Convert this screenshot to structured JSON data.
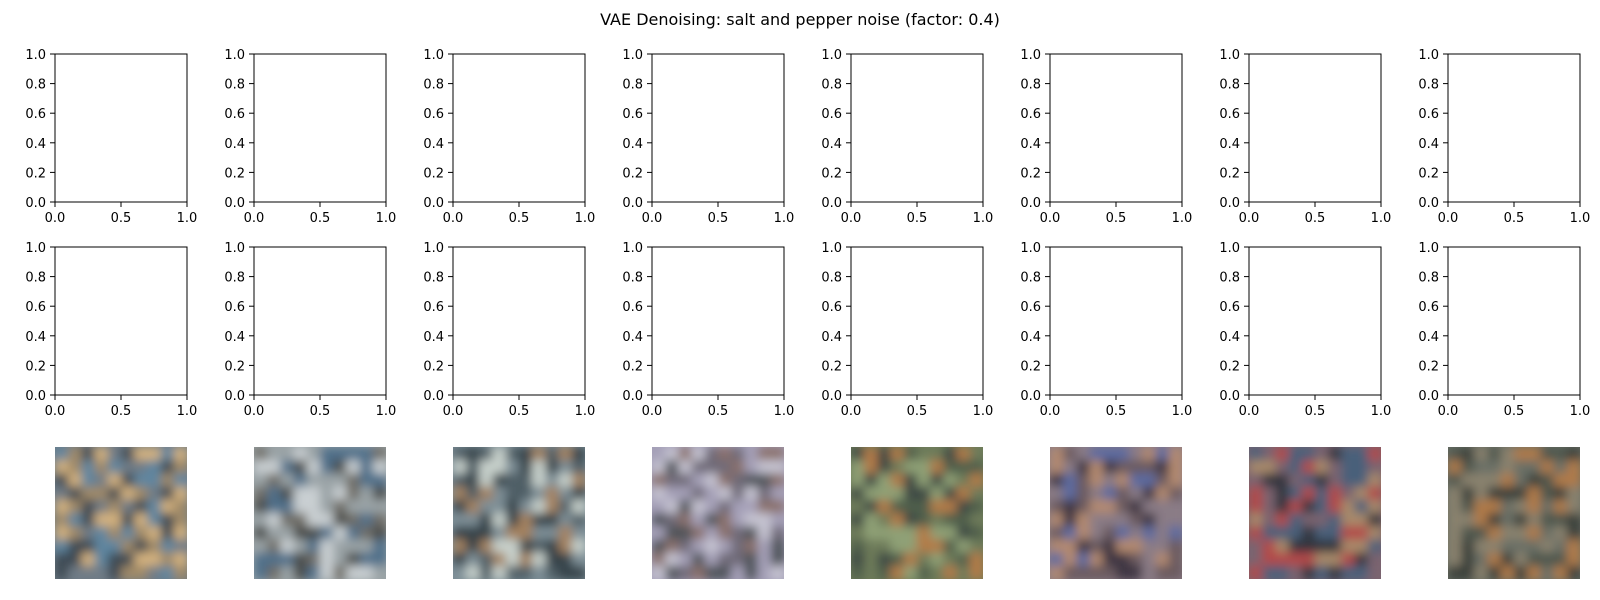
{
  "chart_data": {
    "type": "image_grid",
    "title": "VAE Denoising: salt and pepper noise (factor: 0.4)",
    "empty_axes": {
      "rows": 2,
      "cols": 8,
      "xlim": [
        0.0,
        1.0
      ],
      "ylim": [
        0.0,
        1.0
      ],
      "xticks": [
        "0.0",
        "0.5",
        "1.0"
      ],
      "yticks": [
        "0.0",
        "0.2",
        "0.4",
        "0.6",
        "0.8",
        "1.0"
      ]
    },
    "images": {
      "count": 8,
      "dominant_colors": [
        [
          "#6f7c86",
          "#a08a68",
          "#5f86a0",
          "#d4b27f",
          "#3d4a52"
        ],
        [
          "#9aa3a6",
          "#6f6d66",
          "#4f6f8a",
          "#c9cfd2",
          "#4a4c48"
        ],
        [
          "#7e8f97",
          "#4f5e66",
          "#a4825e",
          "#c8d1cc",
          "#36434a"
        ],
        [
          "#a5a0b8",
          "#6f6a78",
          "#8a6f6a",
          "#c6c4d2",
          "#4e5258"
        ],
        [
          "#6e7c5a",
          "#4f5f4c",
          "#b27a46",
          "#8fa076",
          "#3e4a44"
        ],
        [
          "#8a7c86",
          "#6a5a5f",
          "#5b6aa0",
          "#b48a70",
          "#3e3442"
        ],
        [
          "#7a6470",
          "#b2484a",
          "#4a607a",
          "#a88a6a",
          "#30343c"
        ],
        [
          "#6a7066",
          "#4e564e",
          "#8a826e",
          "#b07a4a",
          "#3a403a"
        ]
      ]
    }
  }
}
